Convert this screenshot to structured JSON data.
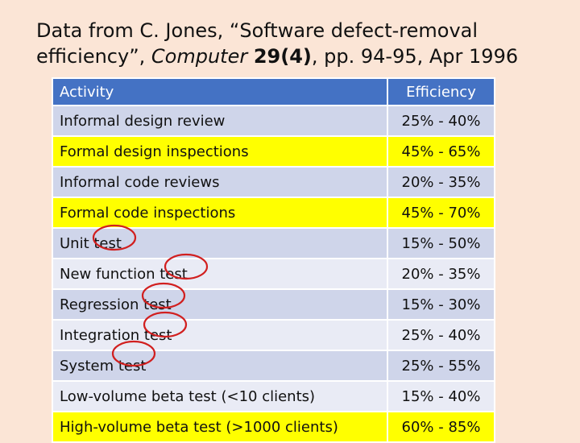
{
  "title": {
    "line1": "Data from C. Jones, “Software defect-removal",
    "line2_start": "efficiency”, ",
    "journal": "Computer",
    "volume": "29(4)",
    "line2_end": ", pp. 94-95, Apr 1996"
  },
  "table": {
    "headers": {
      "activity": "Activity",
      "efficiency": "Efficiency"
    },
    "rows": [
      {
        "activity": "Informal design review",
        "efficiency": "25% - 40%",
        "highlight": false
      },
      {
        "activity": "Formal design inspections",
        "efficiency": "45% - 65%",
        "highlight": true
      },
      {
        "activity": "Informal code reviews",
        "efficiency": "20% - 35%",
        "highlight": false
      },
      {
        "activity": "Formal code inspections",
        "efficiency": "45% - 70%",
        "highlight": true
      },
      {
        "activity": "Unit test",
        "efficiency": "15% - 50%",
        "highlight": false
      },
      {
        "activity": "New function test",
        "efficiency": "20% - 35%",
        "highlight": false
      },
      {
        "activity": "Regression test",
        "efficiency": "15% - 30%",
        "highlight": false
      },
      {
        "activity": "Integration test",
        "efficiency": "25% - 40%",
        "highlight": false
      },
      {
        "activity": "System test",
        "efficiency": "25% - 55%",
        "highlight": false
      },
      {
        "activity": "Low-volume beta test (<10 clients)",
        "efficiency": "15% - 40%",
        "highlight": false
      },
      {
        "activity": "High-volume beta test (>1000 clients)",
        "efficiency": "60% - 85%",
        "highlight": true
      }
    ]
  },
  "colors": {
    "background": "#fbe5d6",
    "header": "#4472c4",
    "row_dark": "#cfd5ea",
    "row_light": "#e9ebf5",
    "highlight": "#ffff00",
    "circle_marks": "#d11f1f"
  }
}
